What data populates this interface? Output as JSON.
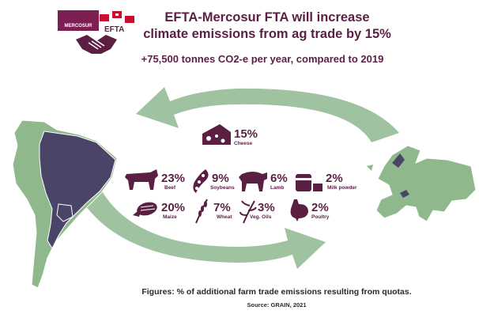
{
  "header": {
    "title": "EFTA-Mercosur FTA will increase climate emissions from ag trade by 15%",
    "subtitle": "+75,500 tonnes CO2-e per year, compared to 2019",
    "logo_mercosur": "MERCOSUR",
    "logo_efta": "EFTA"
  },
  "items": [
    {
      "icon": "cheese-icon",
      "pct": "15%",
      "label": "Cheese"
    },
    {
      "icon": "cow-icon",
      "pct": "23%",
      "label": "Beef"
    },
    {
      "icon": "soybean-icon",
      "pct": "9%",
      "label": "Soybeans"
    },
    {
      "icon": "lamb-icon",
      "pct": "6%",
      "label": "Lamb"
    },
    {
      "icon": "milk-can-icon",
      "pct": "2%",
      "label": "Milk powder"
    },
    {
      "icon": "maize-icon",
      "pct": "20%",
      "label": "Maize"
    },
    {
      "icon": "wheat-icon",
      "pct": "7%",
      "label": "Wheat"
    },
    {
      "icon": "oil-plant-icon",
      "pct": "3%",
      "label": "Veg. Oils"
    },
    {
      "icon": "chicken-icon",
      "pct": "2%",
      "label": "Poultry"
    }
  ],
  "footer": {
    "note": "Figures: % of additional farm trade emissions resulting from quotas.",
    "source": "Source: GRAIN, 2021"
  },
  "colors": {
    "accent": "#5b1f44",
    "arrow": "#9fc3a0",
    "map_land": "#8fb98c",
    "map_highlight": "#4a4568"
  }
}
